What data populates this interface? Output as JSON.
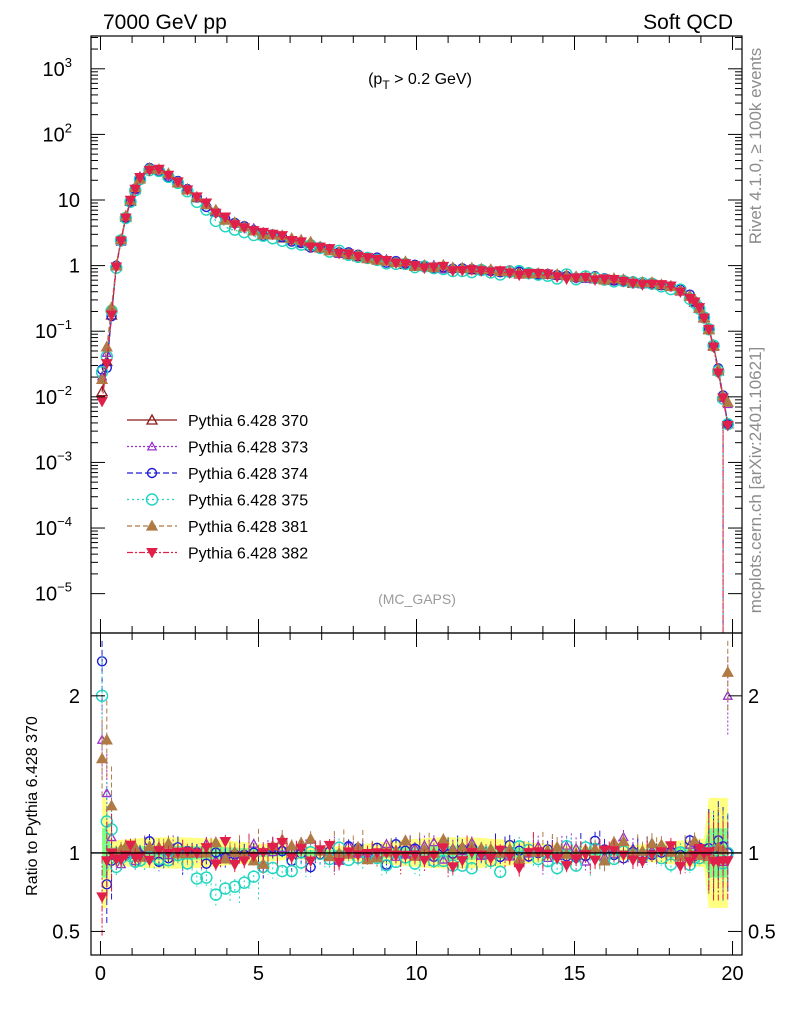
{
  "header": {
    "left": "7000 GeV pp",
    "right": "Soft QCD"
  },
  "side_labels": {
    "rivet": "Rivet 4.1.0, ≥ 100k events",
    "mcplots": "mcplots.cern.ch [arXiv:2401.10621]"
  },
  "annotation": {
    "open": "(p",
    "sub": "T",
    "rest": " > 0.2 GeV)"
  },
  "watermark": "(MC_GAPS)",
  "ratio_ylabel": "Ratio to Pythia 6.428 370",
  "colors": {
    "band_yellow": "#ffff80",
    "band_green": "#80ff80"
  },
  "chart_data": {
    "type": "line",
    "main": {
      "xlim": [
        -0.3,
        20.3
      ],
      "ylim_log10": [
        -5.6,
        3.5
      ],
      "y_ticks": [
        {
          "base": "10",
          "exp": "3",
          "value": 1000
        },
        {
          "base": "10",
          "exp": "2",
          "value": 100
        },
        {
          "base": "10",
          "exp": "",
          "value": 10
        },
        {
          "base": "1",
          "exp": "",
          "value": 1
        },
        {
          "base": "10",
          "exp": "−1",
          "value": 0.1
        },
        {
          "base": "10",
          "exp": "−2",
          "value": 0.01
        },
        {
          "base": "10",
          "exp": "−3",
          "value": 0.001
        },
        {
          "base": "10",
          "exp": "−4",
          "value": 0.0001
        },
        {
          "base": "10",
          "exp": "−5",
          "value": 1e-05
        }
      ],
      "reference_shape": {
        "x": [
          0.0,
          0.15,
          0.3,
          0.5,
          0.75,
          1.0,
          1.25,
          1.5,
          1.75,
          2.0,
          2.5,
          3.0,
          3.5,
          4.0,
          5.0,
          6.0,
          7.0,
          8.0,
          9.0,
          10.0,
          11.0,
          12.0,
          13.0,
          14.0,
          15.0,
          16.0,
          17.0,
          17.5,
          18.0,
          18.3,
          18.6,
          18.9,
          19.2,
          19.4,
          19.55,
          19.7,
          19.8,
          19.9
        ],
        "y": [
          0.009,
          0.02,
          0.1,
          1.0,
          4.5,
          11.5,
          22,
          29,
          30,
          27,
          18,
          11.5,
          7.5,
          5.0,
          3.3,
          2.5,
          1.85,
          1.45,
          1.2,
          1.0,
          0.92,
          0.85,
          0.8,
          0.74,
          0.68,
          0.62,
          0.55,
          0.53,
          0.48,
          0.44,
          0.36,
          0.25,
          0.13,
          0.06,
          0.025,
          0.01,
          0.005,
          0.003
        ]
      }
    },
    "ratio": {
      "ylim": [
        0.35,
        2.4
      ],
      "y_ticks": [
        {
          "label": "0.5",
          "value": 0.5
        },
        {
          "label": "1",
          "value": 1
        },
        {
          "label": "2",
          "value": 2
        }
      ],
      "reference_value": 1
    },
    "x_ticks": [
      {
        "label": "0",
        "value": 0
      },
      {
        "label": "5",
        "value": 5
      },
      {
        "label": "10",
        "value": 10
      },
      {
        "label": "15",
        "value": 15
      },
      {
        "label": "20",
        "value": 20
      }
    ],
    "series": [
      {
        "name": "Pythia 6.428 370",
        "color": "#8b1a1a",
        "marker": "triangle-open",
        "dash": "",
        "ratio_bias": 1.0,
        "ratio_dip": 0.0,
        "ratio_edge": [
          0.9,
          1.05,
          1.0,
          1.0
        ]
      },
      {
        "name": "Pythia 6.428 373",
        "color": "#9932cc",
        "marker": "triangle-open-small",
        "dash": "2,2",
        "ratio_bias": 1.01,
        "ratio_dip": 0.0,
        "ratio_edge": [
          1.72,
          1.38,
          1.1,
          2.0
        ]
      },
      {
        "name": "Pythia 6.428 374",
        "color": "#1f1fd6",
        "marker": "circle-open",
        "dash": "6,3",
        "ratio_bias": 1.0,
        "ratio_dip": 0.03,
        "ratio_edge": [
          2.22,
          0.8,
          0.95,
          1.0
        ]
      },
      {
        "name": "Pythia 6.428 375",
        "color": "#1fd6c0",
        "marker": "circle-open-large",
        "dash": "2,3",
        "ratio_bias": 0.97,
        "ratio_dip": 0.22,
        "ratio_edge": [
          2.0,
          1.2,
          1.15,
          1.0
        ]
      },
      {
        "name": "Pythia 6.428 381",
        "color": "#b07a45",
        "marker": "triangle-filled",
        "dash": "5,3",
        "ratio_bias": 1.02,
        "ratio_dip": 0.0,
        "ratio_edge": [
          1.6,
          1.72,
          1.3,
          2.15
        ]
      },
      {
        "name": "Pythia 6.428 382",
        "color": "#e0204a",
        "marker": "triangle-down-filled",
        "dash": "6,2,2,2",
        "ratio_bias": 0.99,
        "ratio_dip": 0.0,
        "ratio_edge": [
          0.72,
          0.95,
          1.0,
          0.95
        ]
      }
    ]
  }
}
